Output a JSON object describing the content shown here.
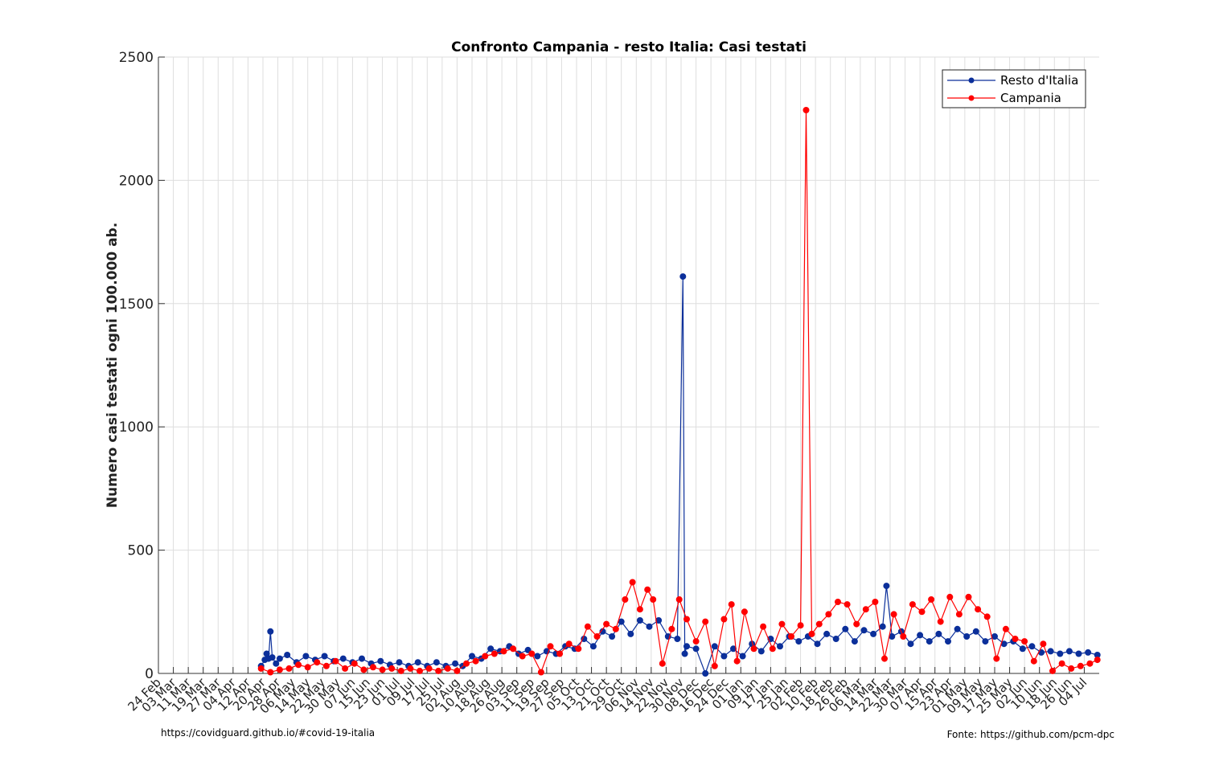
{
  "chart_data": {
    "type": "line",
    "title": "Confronto Campania - resto Italia: Casi testati",
    "ylabel": "Numero casi testati ogni 100.000 ab.",
    "xlabel": "",
    "ylim": [
      0,
      2500
    ],
    "yticks": [
      "0",
      "500",
      "1000",
      "1500",
      "2000",
      "2500"
    ],
    "grid": true,
    "legend_position": "top-right",
    "x_start_date": "2020-02-24",
    "x_end_date": "2021-07-12",
    "x_ticks": [
      "24 Feb",
      "03 Mar",
      "11 Mar",
      "19 Mar",
      "27 Mar",
      "04 Apr",
      "12 Apr",
      "20 Apr",
      "28 Apr",
      "06 May",
      "14 May",
      "22 May",
      "30 May",
      "07 Jun",
      "15 Jun",
      "23 Jun",
      "01 Jul",
      "09 Jul",
      "17 Jul",
      "25 Jul",
      "02 Aug",
      "10 Aug",
      "18 Aug",
      "26 Aug",
      "03 Sep",
      "11 Sep",
      "19 Sep",
      "27 Sep",
      "05 Oct",
      "13 Oct",
      "21 Oct",
      "29 Oct",
      "06 Nov",
      "14 Nov",
      "22 Nov",
      "30 Nov",
      "08 Dec",
      "16 Dec",
      "24 Dec",
      "01 Jan",
      "09 Jan",
      "17 Jan",
      "25 Jan",
      "02 Feb",
      "10 Feb",
      "18 Feb",
      "26 Feb",
      "06 Mar",
      "14 Mar",
      "22 Mar",
      "30 Mar",
      "07 Apr",
      "15 Apr",
      "23 Apr",
      "01 May",
      "09 May",
      "17 May",
      "25 May",
      "02 Jun",
      "10 Jun",
      "18 Jun",
      "26 Jun",
      "04 Jul"
    ],
    "series": [
      {
        "name": "Resto d'Italia",
        "color": "#0b2f9a",
        "data": [
          [
            "2020-04-19",
            30
          ],
          [
            "2020-04-21",
            55
          ],
          [
            "2020-04-22",
            80
          ],
          [
            "2020-04-23",
            60
          ],
          [
            "2020-04-24",
            170
          ],
          [
            "2020-04-25",
            65
          ],
          [
            "2020-04-27",
            40
          ],
          [
            "2020-04-29",
            60
          ],
          [
            "2020-05-03",
            75
          ],
          [
            "2020-05-08",
            45
          ],
          [
            "2020-05-13",
            70
          ],
          [
            "2020-05-18",
            55
          ],
          [
            "2020-05-23",
            70
          ],
          [
            "2020-05-28",
            50
          ],
          [
            "2020-06-02",
            60
          ],
          [
            "2020-06-07",
            45
          ],
          [
            "2020-06-12",
            60
          ],
          [
            "2020-06-17",
            40
          ],
          [
            "2020-06-22",
            50
          ],
          [
            "2020-06-27",
            35
          ],
          [
            "2020-07-02",
            45
          ],
          [
            "2020-07-07",
            30
          ],
          [
            "2020-07-12",
            45
          ],
          [
            "2020-07-17",
            30
          ],
          [
            "2020-07-22",
            45
          ],
          [
            "2020-07-27",
            30
          ],
          [
            "2020-08-01",
            40
          ],
          [
            "2020-08-05",
            30
          ],
          [
            "2020-08-10",
            70
          ],
          [
            "2020-08-15",
            60
          ],
          [
            "2020-08-20",
            100
          ],
          [
            "2020-08-25",
            90
          ],
          [
            "2020-08-30",
            110
          ],
          [
            "2020-09-04",
            80
          ],
          [
            "2020-09-09",
            95
          ],
          [
            "2020-09-14",
            70
          ],
          [
            "2020-09-19",
            90
          ],
          [
            "2020-09-24",
            80
          ],
          [
            "2020-09-29",
            110
          ],
          [
            "2020-10-04",
            100
          ],
          [
            "2020-10-09",
            140
          ],
          [
            "2020-10-14",
            110
          ],
          [
            "2020-10-19",
            170
          ],
          [
            "2020-10-24",
            150
          ],
          [
            "2020-10-29",
            210
          ],
          [
            "2020-11-03",
            160
          ],
          [
            "2020-11-08",
            215
          ],
          [
            "2020-11-13",
            190
          ],
          [
            "2020-11-18",
            215
          ],
          [
            "2020-11-23",
            150
          ],
          [
            "2020-11-28",
            140
          ],
          [
            "2020-12-01",
            1610
          ],
          [
            "2020-12-02",
            80
          ],
          [
            "2020-12-03",
            110
          ],
          [
            "2020-12-08",
            100
          ],
          [
            "2020-12-13",
            0
          ],
          [
            "2020-12-18",
            110
          ],
          [
            "2020-12-23",
            70
          ],
          [
            "2020-12-28",
            100
          ],
          [
            "2021-01-02",
            70
          ],
          [
            "2021-01-07",
            120
          ],
          [
            "2021-01-12",
            90
          ],
          [
            "2021-01-17",
            140
          ],
          [
            "2021-01-22",
            110
          ],
          [
            "2021-01-27",
            150
          ],
          [
            "2021-02-01",
            130
          ],
          [
            "2021-02-06",
            150
          ],
          [
            "2021-02-11",
            120
          ],
          [
            "2021-02-16",
            160
          ],
          [
            "2021-02-21",
            140
          ],
          [
            "2021-02-26",
            180
          ],
          [
            "2021-03-03",
            130
          ],
          [
            "2021-03-08",
            175
          ],
          [
            "2021-03-13",
            160
          ],
          [
            "2021-03-18",
            190
          ],
          [
            "2021-03-20",
            355
          ],
          [
            "2021-03-23",
            150
          ],
          [
            "2021-03-28",
            170
          ],
          [
            "2021-04-02",
            120
          ],
          [
            "2021-04-07",
            155
          ],
          [
            "2021-04-12",
            130
          ],
          [
            "2021-04-17",
            160
          ],
          [
            "2021-04-22",
            130
          ],
          [
            "2021-04-27",
            180
          ],
          [
            "2021-05-02",
            150
          ],
          [
            "2021-05-07",
            170
          ],
          [
            "2021-05-12",
            130
          ],
          [
            "2021-05-17",
            150
          ],
          [
            "2021-05-22",
            120
          ],
          [
            "2021-05-27",
            130
          ],
          [
            "2021-06-01",
            100
          ],
          [
            "2021-06-06",
            110
          ],
          [
            "2021-06-11",
            85
          ],
          [
            "2021-06-16",
            90
          ],
          [
            "2021-06-21",
            80
          ],
          [
            "2021-06-26",
            90
          ],
          [
            "2021-07-01",
            80
          ],
          [
            "2021-07-06",
            85
          ],
          [
            "2021-07-11",
            75
          ]
        ]
      },
      {
        "name": "Campania",
        "color": "#ff0000",
        "data": [
          [
            "2020-04-19",
            20
          ],
          [
            "2020-04-24",
            5
          ],
          [
            "2020-04-29",
            15
          ],
          [
            "2020-05-04",
            20
          ],
          [
            "2020-05-09",
            35
          ],
          [
            "2020-05-14",
            25
          ],
          [
            "2020-05-19",
            45
          ],
          [
            "2020-05-24",
            30
          ],
          [
            "2020-05-29",
            50
          ],
          [
            "2020-06-03",
            20
          ],
          [
            "2020-06-08",
            40
          ],
          [
            "2020-06-13",
            15
          ],
          [
            "2020-06-18",
            25
          ],
          [
            "2020-06-23",
            15
          ],
          [
            "2020-06-28",
            20
          ],
          [
            "2020-07-03",
            10
          ],
          [
            "2020-07-08",
            20
          ],
          [
            "2020-07-13",
            10
          ],
          [
            "2020-07-18",
            20
          ],
          [
            "2020-07-23",
            10
          ],
          [
            "2020-07-28",
            20
          ],
          [
            "2020-08-02",
            10
          ],
          [
            "2020-08-07",
            40
          ],
          [
            "2020-08-12",
            50
          ],
          [
            "2020-08-17",
            70
          ],
          [
            "2020-08-22",
            80
          ],
          [
            "2020-08-27",
            90
          ],
          [
            "2020-09-01",
            100
          ],
          [
            "2020-09-06",
            70
          ],
          [
            "2020-09-11",
            80
          ],
          [
            "2020-09-16",
            5
          ],
          [
            "2020-09-21",
            110
          ],
          [
            "2020-09-26",
            80
          ],
          [
            "2020-10-01",
            120
          ],
          [
            "2020-10-06",
            100
          ],
          [
            "2020-10-11",
            190
          ],
          [
            "2020-10-16",
            150
          ],
          [
            "2020-10-21",
            200
          ],
          [
            "2020-10-26",
            180
          ],
          [
            "2020-10-31",
            300
          ],
          [
            "2020-11-04",
            370
          ],
          [
            "2020-11-08",
            260
          ],
          [
            "2020-11-12",
            340
          ],
          [
            "2020-11-15",
            300
          ],
          [
            "2020-11-20",
            40
          ],
          [
            "2020-11-25",
            180
          ],
          [
            "2020-11-29",
            300
          ],
          [
            "2020-12-03",
            220
          ],
          [
            "2020-12-08",
            130
          ],
          [
            "2020-12-13",
            210
          ],
          [
            "2020-12-18",
            30
          ],
          [
            "2020-12-23",
            220
          ],
          [
            "2020-12-27",
            280
          ],
          [
            "2020-12-30",
            50
          ],
          [
            "2021-01-03",
            250
          ],
          [
            "2021-01-08",
            100
          ],
          [
            "2021-01-13",
            190
          ],
          [
            "2021-01-18",
            100
          ],
          [
            "2021-01-23",
            200
          ],
          [
            "2021-01-28",
            150
          ],
          [
            "2021-02-02",
            195
          ],
          [
            "2021-02-05",
            2285
          ],
          [
            "2021-02-08",
            160
          ],
          [
            "2021-02-12",
            200
          ],
          [
            "2021-02-17",
            240
          ],
          [
            "2021-02-22",
            290
          ],
          [
            "2021-02-27",
            280
          ],
          [
            "2021-03-04",
            200
          ],
          [
            "2021-03-09",
            260
          ],
          [
            "2021-03-14",
            290
          ],
          [
            "2021-03-19",
            60
          ],
          [
            "2021-03-24",
            240
          ],
          [
            "2021-03-29",
            150
          ],
          [
            "2021-04-03",
            280
          ],
          [
            "2021-04-08",
            250
          ],
          [
            "2021-04-13",
            300
          ],
          [
            "2021-04-18",
            210
          ],
          [
            "2021-04-23",
            310
          ],
          [
            "2021-04-28",
            240
          ],
          [
            "2021-05-03",
            310
          ],
          [
            "2021-05-08",
            260
          ],
          [
            "2021-05-13",
            230
          ],
          [
            "2021-05-18",
            60
          ],
          [
            "2021-05-23",
            180
          ],
          [
            "2021-05-28",
            140
          ],
          [
            "2021-06-02",
            130
          ],
          [
            "2021-06-07",
            50
          ],
          [
            "2021-06-12",
            120
          ],
          [
            "2021-06-17",
            10
          ],
          [
            "2021-06-22",
            40
          ],
          [
            "2021-06-27",
            20
          ],
          [
            "2021-07-02",
            30
          ],
          [
            "2021-07-07",
            40
          ],
          [
            "2021-07-11",
            55
          ]
        ]
      }
    ]
  },
  "footer": {
    "left": "https://covidguard.github.io/#covid-19-italia",
    "right": "Fonte: https://github.com/pcm-dpc"
  }
}
